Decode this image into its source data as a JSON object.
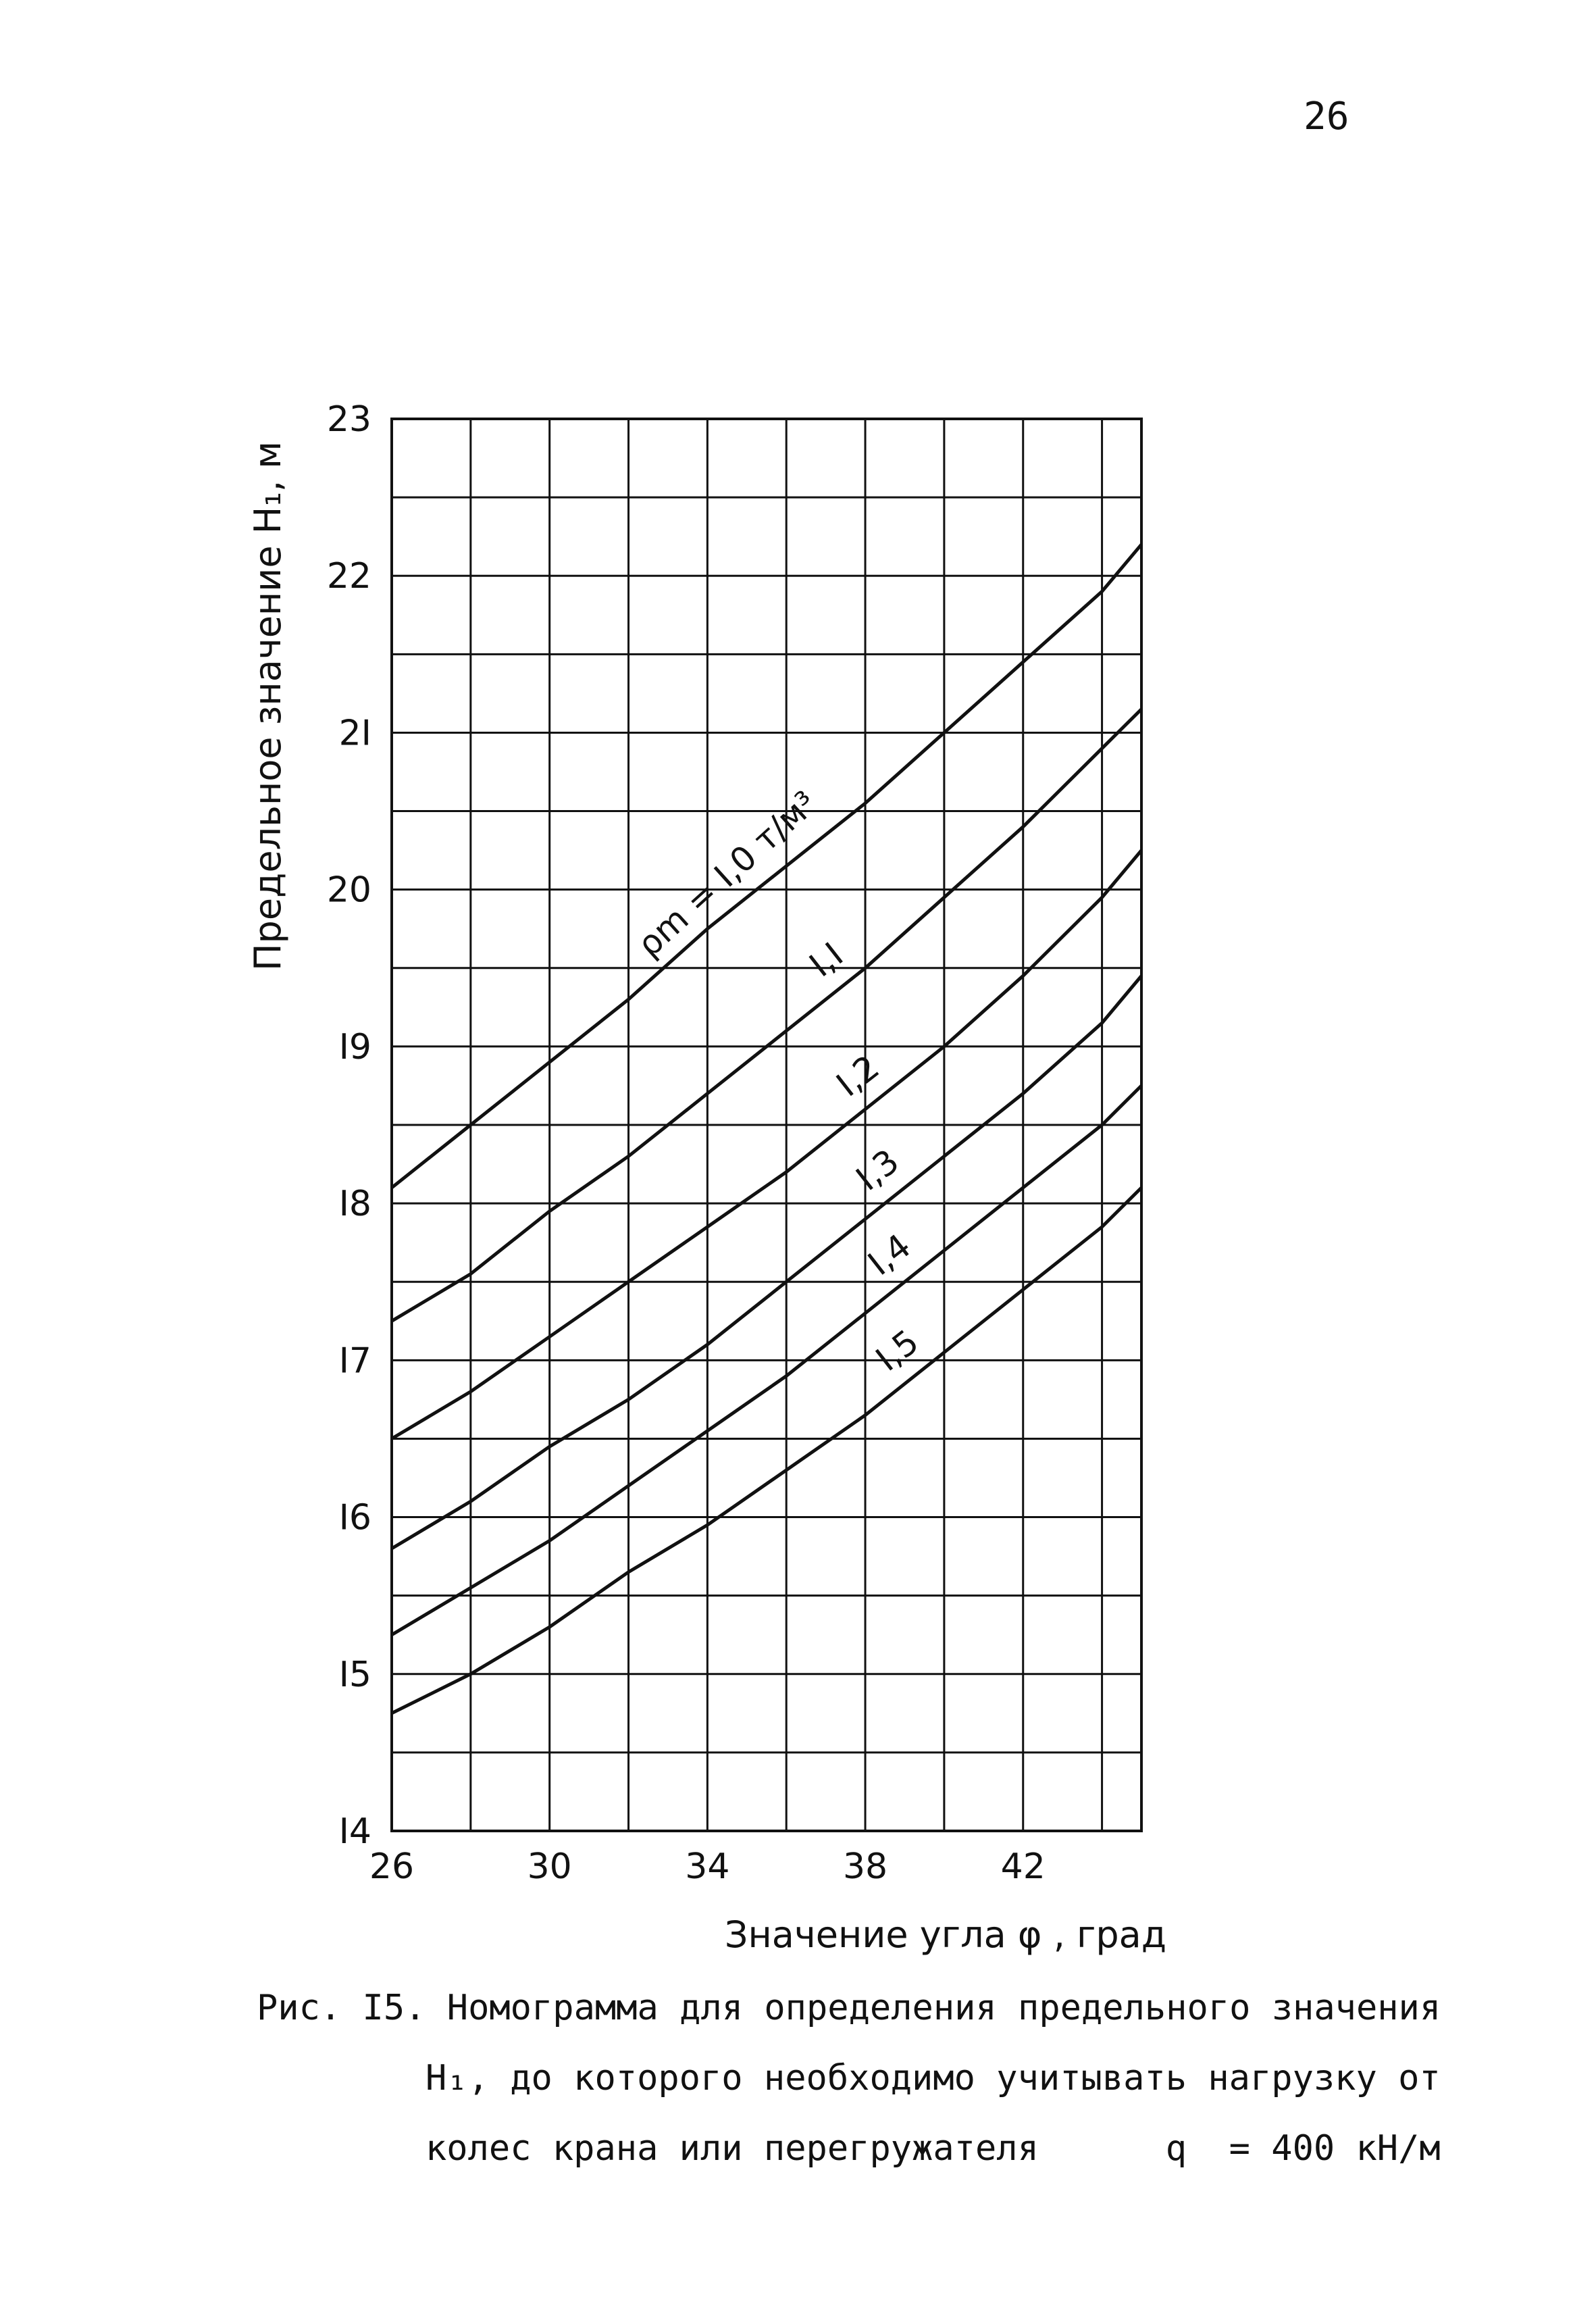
{
  "page": {
    "number": "26"
  },
  "chart_data": {
    "type": "line",
    "xlabel": "Значение угла φ , град",
    "ylabel": "Предельное значение Н₁, м",
    "xlim": [
      26,
      45
    ],
    "ylim": [
      14,
      23
    ],
    "x_ticks": [
      "26",
      "30",
      "34",
      "38",
      "42"
    ],
    "x_tick_values": [
      26,
      30,
      34,
      38,
      42
    ],
    "y_ticks": [
      "I4",
      "I5",
      "I6",
      "I7",
      "I8",
      "I9",
      "20",
      "2I",
      "22",
      "23"
    ],
    "y_tick_values": [
      14,
      15,
      16,
      17,
      18,
      19,
      20,
      21,
      22,
      23
    ],
    "grid": true,
    "x_gridlines": [
      26,
      28,
      30,
      32,
      34,
      36,
      38,
      40,
      42,
      44,
      45
    ],
    "y_gridlines": [
      14,
      14.5,
      15,
      15.5,
      16,
      16.5,
      17,
      17.5,
      18,
      18.5,
      19,
      19.5,
      20,
      20.5,
      21,
      21.5,
      22,
      22.5,
      23
    ],
    "series": [
      {
        "name": "ρm = I,0 т/м³",
        "label_angle": -42,
        "x": [
          26,
          28,
          30,
          32,
          34,
          36,
          38,
          40,
          42,
          44,
          45
        ],
        "y": [
          18.1,
          18.5,
          18.9,
          19.3,
          19.75,
          20.15,
          20.55,
          21.0,
          21.45,
          21.9,
          22.2
        ]
      },
      {
        "name": "I,I",
        "label_angle": -38,
        "x": [
          26,
          28,
          30,
          32,
          34,
          36,
          38,
          40,
          42,
          44,
          45
        ],
        "y": [
          17.25,
          17.55,
          17.95,
          18.3,
          18.7,
          19.1,
          19.5,
          19.95,
          20.4,
          20.9,
          21.15
        ]
      },
      {
        "name": "I,2",
        "label_angle": -38,
        "x": [
          26,
          28,
          30,
          32,
          34,
          36,
          38,
          40,
          42,
          44,
          45
        ],
        "y": [
          16.5,
          16.8,
          17.15,
          17.5,
          17.85,
          18.2,
          18.6,
          19.0,
          19.45,
          19.95,
          20.25
        ]
      },
      {
        "name": "I,3",
        "label_angle": -38,
        "x": [
          26,
          28,
          30,
          32,
          34,
          36,
          38,
          40,
          42,
          44,
          45
        ],
        "y": [
          15.8,
          16.1,
          16.45,
          16.75,
          17.1,
          17.5,
          17.9,
          18.3,
          18.7,
          19.15,
          19.45
        ]
      },
      {
        "name": "I,4",
        "label_angle": -38,
        "x": [
          26,
          28,
          30,
          32,
          34,
          36,
          38,
          40,
          42,
          44,
          45
        ],
        "y": [
          15.25,
          15.55,
          15.85,
          16.2,
          16.55,
          16.9,
          17.3,
          17.7,
          18.1,
          18.5,
          18.75
        ]
      },
      {
        "name": "I,5",
        "label_angle": -38,
        "x": [
          26,
          28,
          30,
          32,
          34,
          36,
          38,
          40,
          42,
          44,
          45
        ],
        "y": [
          14.75,
          15.0,
          15.3,
          15.65,
          15.95,
          16.3,
          16.65,
          17.05,
          17.45,
          17.85,
          18.1
        ]
      }
    ]
  },
  "caption": {
    "line1": "Рис. I5. Номограмма для определения предельного значения",
    "line2": "Н₁, до которого необходимо учитывать нагрузку от",
    "line3": "колес крана или перегружателя      q  = 400 кН/м"
  },
  "colors": {
    "ink": "#111111",
    "paper": "#ffffff"
  }
}
